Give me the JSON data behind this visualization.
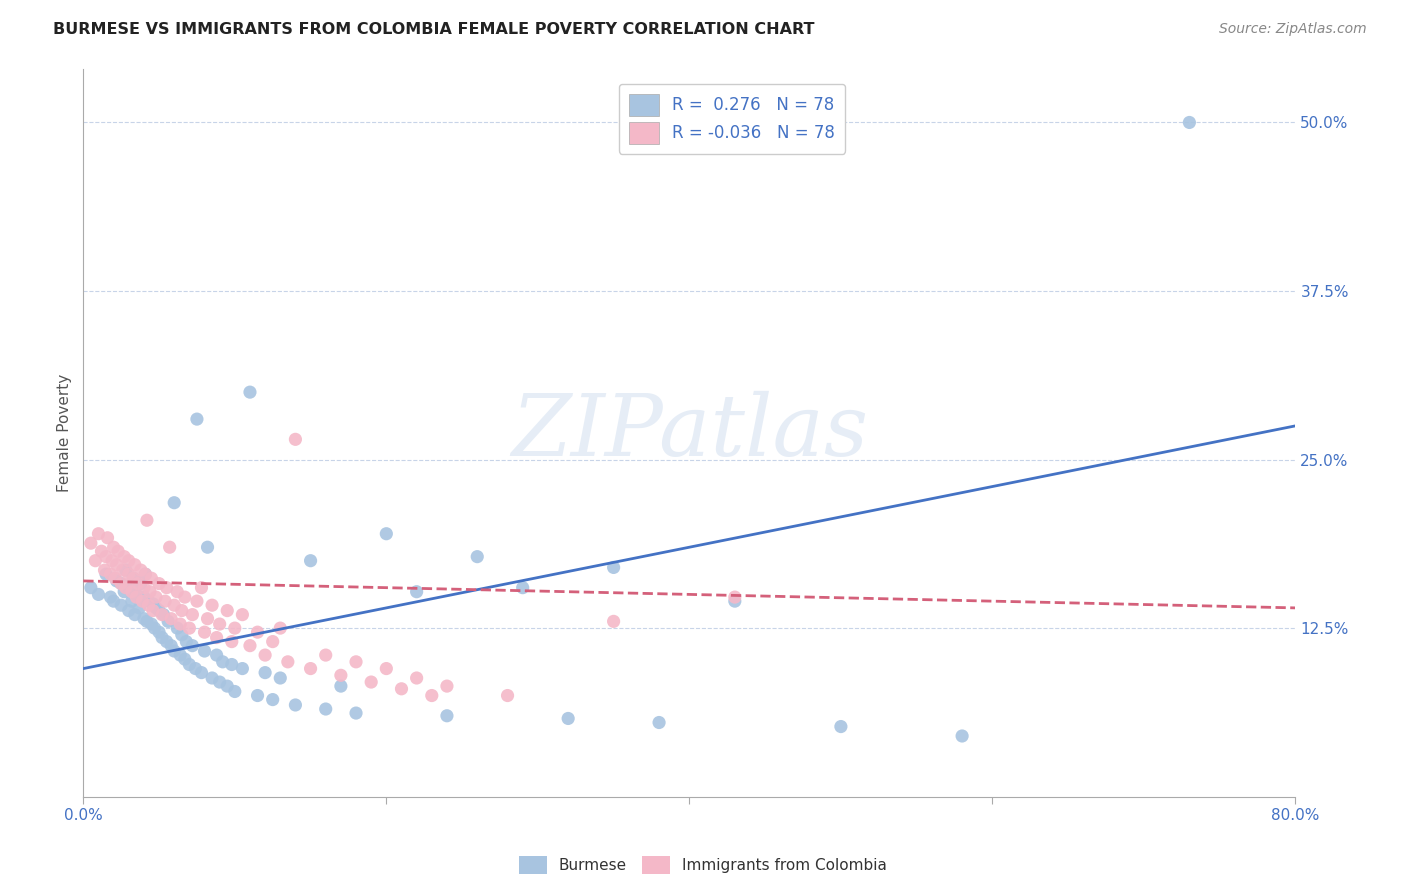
{
  "title": "BURMESE VS IMMIGRANTS FROM COLOMBIA FEMALE POVERTY CORRELATION CHART",
  "source": "Source: ZipAtlas.com",
  "ylabel": "Female Poverty",
  "xlim": [
    0.0,
    0.8
  ],
  "ylim": [
    0.0,
    0.54
  ],
  "yticks": [
    0.0,
    0.125,
    0.25,
    0.375,
    0.5
  ],
  "ytick_labels": [
    "",
    "12.5%",
    "25.0%",
    "37.5%",
    "50.0%"
  ],
  "xticks": [
    0.0,
    0.2,
    0.4,
    0.6,
    0.8
  ],
  "xtick_labels": [
    "0.0%",
    "",
    "",
    "",
    "80.0%"
  ],
  "burmese_color": "#a8c4e0",
  "colombia_color": "#f4b8c8",
  "burmese_line_color": "#4472c4",
  "colombia_line_color": "#d4607a",
  "background_color": "#ffffff",
  "grid_color": "#c8d4e8",
  "r_burmese": 0.276,
  "r_colombia": -0.036,
  "n_burmese": 78,
  "n_colombia": 78,
  "burmese_x": [
    0.005,
    0.01,
    0.015,
    0.018,
    0.02,
    0.022,
    0.025,
    0.025,
    0.027,
    0.028,
    0.03,
    0.03,
    0.032,
    0.033,
    0.034,
    0.035,
    0.037,
    0.038,
    0.04,
    0.04,
    0.041,
    0.042,
    0.043,
    0.045,
    0.046,
    0.047,
    0.048,
    0.05,
    0.05,
    0.052,
    0.053,
    0.055,
    0.056,
    0.058,
    0.06,
    0.06,
    0.062,
    0.064,
    0.065,
    0.067,
    0.068,
    0.07,
    0.072,
    0.074,
    0.075,
    0.078,
    0.08,
    0.082,
    0.085,
    0.088,
    0.09,
    0.092,
    0.095,
    0.098,
    0.1,
    0.105,
    0.11,
    0.115,
    0.12,
    0.125,
    0.13,
    0.14,
    0.15,
    0.16,
    0.17,
    0.18,
    0.2,
    0.22,
    0.24,
    0.26,
    0.29,
    0.32,
    0.35,
    0.38,
    0.43,
    0.5,
    0.58,
    0.73
  ],
  "burmese_y": [
    0.155,
    0.15,
    0.165,
    0.148,
    0.145,
    0.16,
    0.142,
    0.158,
    0.152,
    0.168,
    0.138,
    0.155,
    0.145,
    0.162,
    0.135,
    0.15,
    0.14,
    0.158,
    0.132,
    0.148,
    0.165,
    0.13,
    0.145,
    0.128,
    0.143,
    0.125,
    0.14,
    0.122,
    0.138,
    0.118,
    0.135,
    0.115,
    0.13,
    0.112,
    0.218,
    0.108,
    0.125,
    0.105,
    0.12,
    0.102,
    0.115,
    0.098,
    0.112,
    0.095,
    0.28,
    0.092,
    0.108,
    0.185,
    0.088,
    0.105,
    0.085,
    0.1,
    0.082,
    0.098,
    0.078,
    0.095,
    0.3,
    0.075,
    0.092,
    0.072,
    0.088,
    0.068,
    0.175,
    0.065,
    0.082,
    0.062,
    0.195,
    0.152,
    0.06,
    0.178,
    0.155,
    0.058,
    0.17,
    0.055,
    0.145,
    0.052,
    0.045,
    0.5
  ],
  "colombia_x": [
    0.005,
    0.008,
    0.01,
    0.012,
    0.014,
    0.015,
    0.016,
    0.018,
    0.019,
    0.02,
    0.021,
    0.022,
    0.023,
    0.025,
    0.026,
    0.027,
    0.028,
    0.03,
    0.03,
    0.032,
    0.033,
    0.034,
    0.035,
    0.036,
    0.038,
    0.039,
    0.04,
    0.041,
    0.042,
    0.043,
    0.044,
    0.045,
    0.046,
    0.048,
    0.05,
    0.052,
    0.054,
    0.055,
    0.057,
    0.058,
    0.06,
    0.062,
    0.064,
    0.065,
    0.067,
    0.07,
    0.072,
    0.075,
    0.078,
    0.08,
    0.082,
    0.085,
    0.088,
    0.09,
    0.095,
    0.098,
    0.1,
    0.105,
    0.11,
    0.115,
    0.12,
    0.125,
    0.13,
    0.135,
    0.14,
    0.15,
    0.16,
    0.17,
    0.18,
    0.19,
    0.2,
    0.21,
    0.22,
    0.23,
    0.24,
    0.28,
    0.35,
    0.43
  ],
  "colombia_y": [
    0.188,
    0.175,
    0.195,
    0.182,
    0.168,
    0.178,
    0.192,
    0.165,
    0.175,
    0.185,
    0.162,
    0.172,
    0.182,
    0.158,
    0.168,
    0.178,
    0.155,
    0.165,
    0.175,
    0.152,
    0.162,
    0.172,
    0.148,
    0.158,
    0.168,
    0.145,
    0.155,
    0.165,
    0.205,
    0.142,
    0.152,
    0.162,
    0.138,
    0.148,
    0.158,
    0.135,
    0.145,
    0.155,
    0.185,
    0.132,
    0.142,
    0.152,
    0.128,
    0.138,
    0.148,
    0.125,
    0.135,
    0.145,
    0.155,
    0.122,
    0.132,
    0.142,
    0.118,
    0.128,
    0.138,
    0.115,
    0.125,
    0.135,
    0.112,
    0.122,
    0.105,
    0.115,
    0.125,
    0.1,
    0.265,
    0.095,
    0.105,
    0.09,
    0.1,
    0.085,
    0.095,
    0.08,
    0.088,
    0.075,
    0.082,
    0.075,
    0.13,
    0.148
  ],
  "burmese_line_x": [
    0.0,
    0.8
  ],
  "burmese_line_y": [
    0.095,
    0.275
  ],
  "colombia_line_x": [
    0.0,
    0.8
  ],
  "colombia_line_y": [
    0.16,
    0.14
  ]
}
